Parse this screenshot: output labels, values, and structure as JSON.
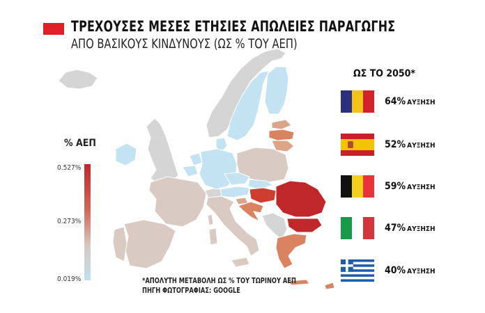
{
  "title": "ΤΡΕΧΟΥΣΕΣ ΜΕΣΕΣ ΕΤΗΣΙΕΣ ΑΠΩΛΕΙΕΣ ΠΑΡΑΓΩΓΗΣ",
  "subtitle": "ΑΠΟ ΒΑΣΙΚΟΥΣ ΚΙΝΔΥΝΟΥΣ (ΩΣ % ΤΟΥ ΑΕΠ)",
  "legend": {
    "title": "% ΑΕΠ",
    "max_label": "0.527%",
    "mid_label": "0.273%",
    "min_label": "0.019%",
    "colors": [
      "#c0262a",
      "#cf6a5a",
      "#d9c8c0",
      "#bfe0f0"
    ]
  },
  "projection": {
    "title": "ΩΣ ΤΟ 2050*",
    "rows": [
      {
        "country": "Romania",
        "flag_icon": "romania-flag-icon",
        "value": "64%",
        "word": "ΑΥΞΗΣΗ"
      },
      {
        "country": "Spain",
        "flag_icon": "spain-flag-icon",
        "value": "52%",
        "word": "ΑΥΞΗΣΗ"
      },
      {
        "country": "Belgium",
        "flag_icon": "belgium-flag-icon",
        "value": "59%",
        "word": "ΑΥΞΗΣΗ"
      },
      {
        "country": "Italy",
        "flag_icon": "italy-flag-icon",
        "value": "47%",
        "word": "ΑΥΞΗΣΗ"
      },
      {
        "country": "Greece",
        "flag_icon": "greece-flag-icon",
        "value": "40%",
        "word": "ΑΥΞΗΣΗ"
      }
    ]
  },
  "footnote": {
    "line1": "*ΑΠΟΛΥΤΗ ΜΕΤΑΒΟΛΗ ΩΣ % ΤΟΥ ΤΩΡΙΝΟΥ ΑΕΠ",
    "line2": "ΠΗΓΗ ΦΩΤΟΓΡΑΦΙΑΣ: GOOGLE"
  },
  "map_colors": {
    "non_eu": "#d5d5d5",
    "low": "#c3e3f3",
    "mid_low": "#d9cac3",
    "mid": "#dca58a",
    "mid_high": "#d98361",
    "high": "#cf3d2e",
    "highest": "#c0272b",
    "border": "#ffffff"
  }
}
